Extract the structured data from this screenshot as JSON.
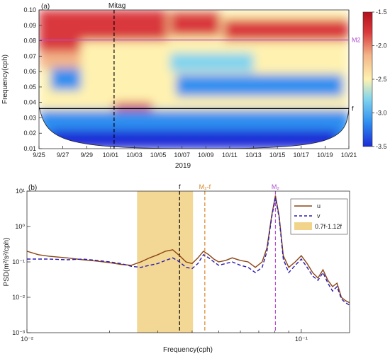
{
  "figure": {
    "panel_a_label": "(a)",
    "panel_b_label": "(b)"
  },
  "chart_data": [
    {
      "type": "heatmap",
      "panel": "(a)",
      "xlabel": "2019",
      "ylabel": "Frequency(cph)",
      "x_ticks": [
        "9/25",
        "9/27",
        "9/29",
        "10/01",
        "10/03",
        "10/05",
        "10/07",
        "10/09",
        "10/11",
        "10/13",
        "10/15",
        "10/17",
        "10/19",
        "10/21"
      ],
      "x_range_days": [
        0,
        26
      ],
      "ylim": [
        0.01,
        0.1
      ],
      "y_ticks": [
        0.01,
        0.02,
        0.03,
        0.04,
        0.05,
        0.06,
        0.07,
        0.08,
        0.09,
        0.1
      ],
      "colorbar": {
        "range": [
          -3.5,
          -1.5
        ],
        "ticks": [
          -1.5,
          -2,
          -2.5,
          -3,
          -3.5
        ],
        "colors": [
          "#1c2bd6",
          "#2f8ff0",
          "#7fd3ee",
          "#fff2b0",
          "#f3b488",
          "#d9393c",
          "#b40f1c"
        ]
      },
      "reference_lines": [
        {
          "label": "M2",
          "value": 0.0805,
          "color": "#b04fcf"
        },
        {
          "label": "f",
          "value": 0.036,
          "color": "#000000"
        }
      ],
      "event": {
        "label": "Mitag",
        "day": 6.3
      },
      "regions": [
        {
          "x0": 0.0,
          "x1": 10.8,
          "y0": 0.072,
          "y1": 0.1,
          "v": -1.7
        },
        {
          "x0": 15.5,
          "x1": 26.0,
          "y0": 0.071,
          "y1": 0.094,
          "v": -1.7
        },
        {
          "x0": 11.0,
          "x1": 15.2,
          "y0": 0.083,
          "y1": 0.099,
          "v": -1.9
        },
        {
          "x0": 6.3,
          "x1": 9.5,
          "y0": 0.033,
          "y1": 0.06,
          "v": -1.95
        },
        {
          "x0": 0.0,
          "x1": 4.0,
          "y0": 0.062,
          "y1": 0.073,
          "v": -2.3
        },
        {
          "x0": 3.5,
          "x1": 26.0,
          "y0": 0.04,
          "y1": 0.08,
          "v": -2.6
        },
        {
          "x0": 1.0,
          "x1": 3.5,
          "y0": 0.048,
          "y1": 0.062,
          "v": -3.3
        },
        {
          "x0": 11.5,
          "x1": 25.5,
          "y0": 0.044,
          "y1": 0.058,
          "v": -3.3
        },
        {
          "x0": 11.0,
          "x1": 18.0,
          "y0": 0.06,
          "y1": 0.072,
          "v": -3.0
        },
        {
          "x0": 0.0,
          "x1": 26.0,
          "y0": 0.01,
          "y1": 0.035,
          "v": -3.1
        },
        {
          "x0": 1.0,
          "x1": 25.0,
          "y0": 0.01,
          "y1": 0.022,
          "v": -3.45
        }
      ]
    },
    {
      "type": "line",
      "panel": "(b)",
      "xlabel": "Frequency(cph)",
      "ylabel": "PSD(m²/s²/cph)",
      "xscale": "log",
      "yscale": "log",
      "xlim": [
        0.01,
        0.15
      ],
      "ylim": [
        0.001,
        10
      ],
      "x_ticks": [
        "10⁻²",
        "10⁻¹"
      ],
      "y_ticks": [
        "10⁻³",
        "10⁻²",
        "10⁻¹",
        "10⁰",
        "10¹"
      ],
      "shaded_band": {
        "label": "0.7f-1.12f",
        "x0": 0.0252,
        "x1": 0.0403,
        "color": "#f1d38a"
      },
      "vlines": [
        {
          "label": "f",
          "x": 0.036,
          "color": "#000000"
        },
        {
          "label": "M₂-f",
          "x": 0.0445,
          "color": "#d9862a"
        },
        {
          "label": "M₂",
          "x": 0.0805,
          "color": "#b04fcf"
        }
      ],
      "series": [
        {
          "name": "u",
          "color": "#8b4513",
          "style": "solid",
          "points": [
            [
              0.01,
              0.2
            ],
            [
              0.011,
              0.16
            ],
            [
              0.012,
              0.145
            ],
            [
              0.014,
              0.13
            ],
            [
              0.016,
              0.115
            ],
            [
              0.018,
              0.105
            ],
            [
              0.02,
              0.095
            ],
            [
              0.022,
              0.085
            ],
            [
              0.024,
              0.08
            ],
            [
              0.026,
              0.1
            ],
            [
              0.028,
              0.13
            ],
            [
              0.03,
              0.16
            ],
            [
              0.032,
              0.2
            ],
            [
              0.034,
              0.22
            ],
            [
              0.036,
              0.15
            ],
            [
              0.038,
              0.1
            ],
            [
              0.04,
              0.09
            ],
            [
              0.042,
              0.13
            ],
            [
              0.044,
              0.2
            ],
            [
              0.046,
              0.16
            ],
            [
              0.048,
              0.12
            ],
            [
              0.05,
              0.1
            ],
            [
              0.053,
              0.11
            ],
            [
              0.056,
              0.13
            ],
            [
              0.06,
              0.11
            ],
            [
              0.064,
              0.1
            ],
            [
              0.068,
              0.07
            ],
            [
              0.072,
              0.1
            ],
            [
              0.075,
              0.25
            ],
            [
              0.078,
              2.0
            ],
            [
              0.0805,
              7.5
            ],
            [
              0.083,
              2.0
            ],
            [
              0.086,
              0.15
            ],
            [
              0.09,
              0.07
            ],
            [
              0.095,
              0.1
            ],
            [
              0.1,
              0.15
            ],
            [
              0.105,
              0.09
            ],
            [
              0.11,
              0.05
            ],
            [
              0.115,
              0.035
            ],
            [
              0.12,
              0.06
            ],
            [
              0.125,
              0.03
            ],
            [
              0.13,
              0.02
            ],
            [
              0.135,
              0.025
            ],
            [
              0.14,
              0.01
            ],
            [
              0.145,
              0.008
            ],
            [
              0.15,
              0.007
            ]
          ]
        },
        {
          "name": "v",
          "color": "#2a1bb0",
          "style": "dashed",
          "points": [
            [
              0.01,
              0.12
            ],
            [
              0.012,
              0.12
            ],
            [
              0.014,
              0.115
            ],
            [
              0.016,
              0.12
            ],
            [
              0.018,
              0.11
            ],
            [
              0.02,
              0.1
            ],
            [
              0.022,
              0.09
            ],
            [
              0.024,
              0.075
            ],
            [
              0.026,
              0.07
            ],
            [
              0.028,
              0.08
            ],
            [
              0.03,
              0.09
            ],
            [
              0.032,
              0.11
            ],
            [
              0.034,
              0.13
            ],
            [
              0.036,
              0.1
            ],
            [
              0.038,
              0.07
            ],
            [
              0.04,
              0.065
            ],
            [
              0.042,
              0.09
            ],
            [
              0.044,
              0.16
            ],
            [
              0.046,
              0.13
            ],
            [
              0.048,
              0.1
            ],
            [
              0.05,
              0.08
            ],
            [
              0.053,
              0.09
            ],
            [
              0.056,
              0.1
            ],
            [
              0.06,
              0.08
            ],
            [
              0.064,
              0.07
            ],
            [
              0.068,
              0.05
            ],
            [
              0.072,
              0.07
            ],
            [
              0.075,
              0.2
            ],
            [
              0.078,
              1.8
            ],
            [
              0.0805,
              6.5
            ],
            [
              0.083,
              1.8
            ],
            [
              0.086,
              0.12
            ],
            [
              0.09,
              0.05
            ],
            [
              0.095,
              0.08
            ],
            [
              0.1,
              0.12
            ],
            [
              0.105,
              0.07
            ],
            [
              0.11,
              0.04
            ],
            [
              0.115,
              0.03
            ],
            [
              0.12,
              0.05
            ],
            [
              0.125,
              0.025
            ],
            [
              0.13,
              0.015
            ],
            [
              0.135,
              0.02
            ],
            [
              0.14,
              0.009
            ],
            [
              0.145,
              0.007
            ],
            [
              0.15,
              0.006
            ]
          ]
        }
      ]
    }
  ]
}
